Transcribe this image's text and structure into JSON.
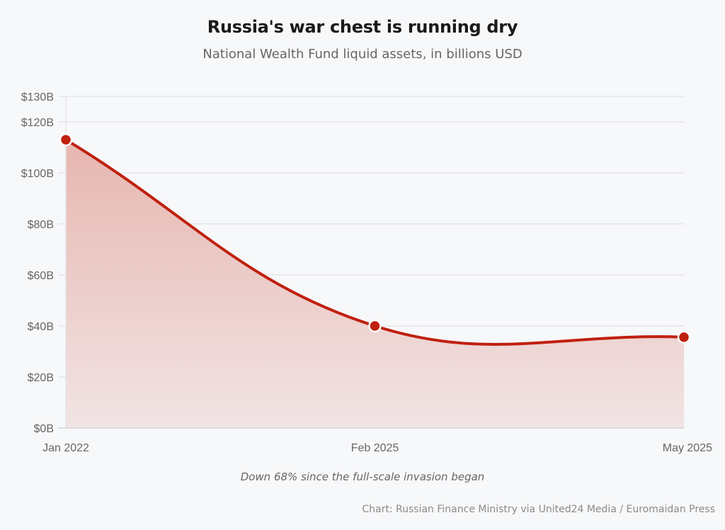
{
  "chart_data": {
    "type": "area",
    "title": "Russia's war chest is running dry",
    "subtitle": "National Wealth Fund liquid assets, in billions USD",
    "xlabel": "",
    "ylabel": "",
    "categories": [
      "Jan 2022",
      "Feb 2025",
      "May 2025"
    ],
    "series": [
      {
        "name": "National Wealth Fund liquid assets",
        "values": [
          113,
          40,
          35.6
        ],
        "color": "#c0200f"
      }
    ],
    "ylim": [
      0,
      130
    ],
    "yticks": [
      0,
      20,
      40,
      60,
      80,
      100,
      120,
      130
    ],
    "ytick_labels": [
      "$0B",
      "$20B",
      "$40B",
      "$60B",
      "$80B",
      "$100B",
      "$120B",
      "$130B"
    ],
    "grid": true,
    "legend": "none",
    "annotation": "Down 68% since the full-scale invasion began",
    "source": "Chart: Russian Finance Ministry via United24 Media / Euromaidan Press",
    "colors": {
      "line": "#c0200f",
      "fill_top": "#e7b6b0",
      "fill_bottom": "#f1e4e4",
      "grid": "#e4e5e8",
      "axis": "#d2d3d6",
      "background": "#f7f8fa"
    }
  }
}
